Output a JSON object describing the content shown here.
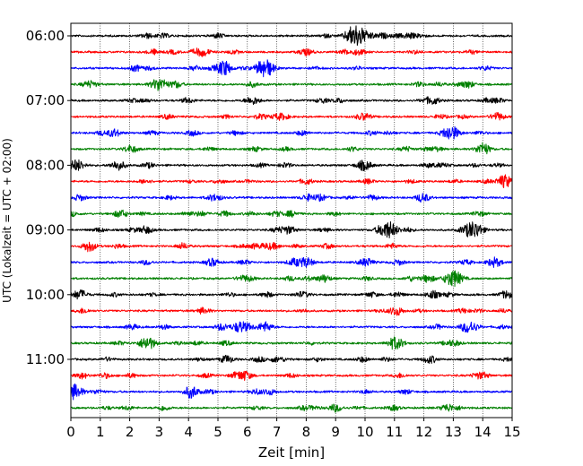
{
  "chart_data": {
    "type": "line",
    "title": "",
    "xlabel": "Zeit  [min]",
    "ylabel": "UTC (Lokalzeit = UTC + 02:00)",
    "xlim": [
      0,
      15
    ],
    "x_ticks": [
      "0",
      "1",
      "2",
      "3",
      "4",
      "5",
      "6",
      "7",
      "8",
      "9",
      "10",
      "11",
      "12",
      "13",
      "14",
      "15"
    ],
    "y_ticks": [
      {
        "label": "06:00",
        "trace_index": 0
      },
      {
        "label": "07:00",
        "trace_index": 4
      },
      {
        "label": "08:00",
        "trace_index": 8
      },
      {
        "label": "09:00",
        "trace_index": 12
      },
      {
        "label": "10:00",
        "trace_index": 16
      },
      {
        "label": "11:00",
        "trace_index": 20
      }
    ],
    "trace_interval_minutes": 15,
    "trace_count": 24,
    "color_cycle": [
      "#000000",
      "#ff0000",
      "#0000ff",
      "#008000"
    ],
    "grid_x": true,
    "bursts": [
      [
        {
          "t": 9.7,
          "a": 1.0
        },
        {
          "t": 5.0,
          "a": 0.25
        },
        {
          "t": 11.5,
          "a": 0.3
        }
      ],
      [
        {
          "t": 4.5,
          "a": 0.4
        },
        {
          "t": 9.8,
          "a": 0.3
        }
      ],
      [
        {
          "t": 5.2,
          "a": 0.6
        },
        {
          "t": 6.6,
          "a": 0.9
        },
        {
          "t": 2.2,
          "a": 0.3
        }
      ],
      [
        {
          "t": 3.0,
          "a": 0.7
        },
        {
          "t": 0.7,
          "a": 0.3
        }
      ],
      [
        {
          "t": 12.3,
          "a": 0.4
        },
        {
          "t": 6.1,
          "a": 0.3
        }
      ],
      [
        {
          "t": 14.5,
          "a": 0.4
        },
        {
          "t": 10.0,
          "a": 0.3
        }
      ],
      [
        {
          "t": 12.9,
          "a": 0.8
        },
        {
          "t": 1.5,
          "a": 0.3
        }
      ],
      [
        {
          "t": 14.0,
          "a": 0.5
        },
        {
          "t": 2.0,
          "a": 0.3
        }
      ],
      [
        {
          "t": 0.2,
          "a": 0.6
        },
        {
          "t": 1.6,
          "a": 0.5
        },
        {
          "t": 9.9,
          "a": 0.4
        }
      ],
      [
        {
          "t": 14.8,
          "a": 0.5
        },
        {
          "t": 8.0,
          "a": 0.3
        }
      ],
      [
        {
          "t": 0.3,
          "a": 0.3
        },
        {
          "t": 8.5,
          "a": 0.3
        }
      ],
      [
        {
          "t": 1.7,
          "a": 0.4
        },
        {
          "t": 7.5,
          "a": 0.3
        }
      ],
      [
        {
          "t": 10.8,
          "a": 0.9
        },
        {
          "t": 13.7,
          "a": 0.9
        },
        {
          "t": 7.4,
          "a": 0.4
        }
      ],
      [
        {
          "t": 0.6,
          "a": 0.4
        },
        {
          "t": 3.8,
          "a": 0.3
        }
      ],
      [
        {
          "t": 8.0,
          "a": 0.5
        },
        {
          "t": 14.4,
          "a": 0.5
        },
        {
          "t": 4.8,
          "a": 0.4
        }
      ],
      [
        {
          "t": 13.0,
          "a": 0.9
        },
        {
          "t": 8.6,
          "a": 0.4
        }
      ],
      [
        {
          "t": 0.3,
          "a": 0.5
        },
        {
          "t": 12.3,
          "a": 0.4
        },
        {
          "t": 14.8,
          "a": 0.4
        }
      ],
      [
        {
          "t": 4.5,
          "a": 0.3
        },
        {
          "t": 11.0,
          "a": 0.3
        }
      ],
      [
        {
          "t": 6.6,
          "a": 0.5
        },
        {
          "t": 13.5,
          "a": 0.6
        },
        {
          "t": 5.7,
          "a": 0.4
        }
      ],
      [
        {
          "t": 2.6,
          "a": 0.7
        },
        {
          "t": 11.0,
          "a": 0.5
        }
      ],
      [
        {
          "t": 5.3,
          "a": 0.4
        },
        {
          "t": 12.2,
          "a": 0.4
        }
      ],
      [
        {
          "t": 5.9,
          "a": 0.5
        },
        {
          "t": 14.0,
          "a": 0.3
        }
      ],
      [
        {
          "t": 0.1,
          "a": 0.8
        },
        {
          "t": 4.1,
          "a": 0.5
        }
      ],
      [
        {
          "t": 9.0,
          "a": 0.4
        },
        {
          "t": 12.8,
          "a": 0.4
        }
      ]
    ]
  }
}
